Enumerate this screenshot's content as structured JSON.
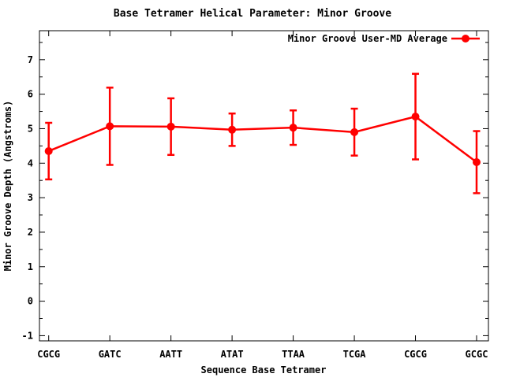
{
  "chart_data": {
    "type": "line",
    "title": "Base Tetramer Helical Parameter: Minor Groove",
    "xlabel": "Sequence Base Tetramer",
    "ylabel": "Minor Groove Depth (Angstroms)",
    "categories": [
      "CGCG",
      "GATC",
      "AATT",
      "ATAT",
      "TTAA",
      "TCGA",
      "CGCG",
      "GCGC"
    ],
    "series": [
      {
        "name": "Minor Groove User-MD Average",
        "values": [
          4.35,
          5.07,
          5.06,
          4.97,
          5.03,
          4.9,
          5.35,
          4.03
        ],
        "errors": [
          0.82,
          1.12,
          0.82,
          0.47,
          0.5,
          0.68,
          1.24,
          0.9
        ]
      }
    ],
    "ylim": [
      -1.15,
      7.84
    ],
    "yticks": [
      -1,
      0,
      1,
      2,
      3,
      4,
      5,
      6,
      7
    ],
    "ytick_minor_step": 0.5,
    "grid": false,
    "legend_position": "top-right-inside",
    "marker": "filled-circle",
    "error_bars": true,
    "colors": {
      "series": "#ff0000",
      "axis": "#000000",
      "background": "#ffffff"
    }
  }
}
